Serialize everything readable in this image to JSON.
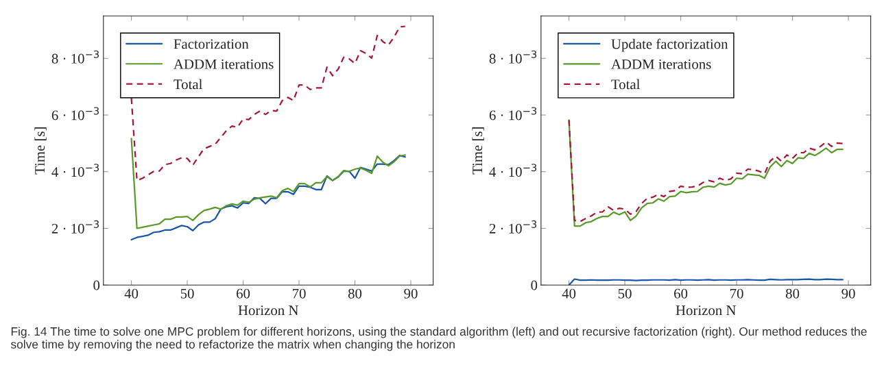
{
  "chart_data": [
    {
      "type": "line",
      "xlabel": "Horizon N",
      "ylabel": "Time [s]",
      "x": [
        40,
        41,
        42,
        43,
        44,
        45,
        46,
        47,
        48,
        49,
        50,
        51,
        52,
        53,
        54,
        55,
        56,
        57,
        58,
        59,
        60,
        61,
        62,
        63,
        64,
        65,
        66,
        67,
        68,
        69,
        70,
        71,
        72,
        73,
        74,
        75,
        76,
        77,
        78,
        79,
        80,
        81,
        82,
        83,
        84,
        85,
        86,
        87,
        88,
        89
      ],
      "series": [
        {
          "name": "Factorization",
          "color": "#1a56a8",
          "line_style": "solid",
          "values": [
            0.0016,
            0.00168,
            0.00172,
            0.00176,
            0.00186,
            0.00188,
            0.00194,
            0.00194,
            0.00202,
            0.0021,
            0.00206,
            0.00192,
            0.00212,
            0.00222,
            0.00222,
            0.00234,
            0.00268,
            0.00276,
            0.0028,
            0.00272,
            0.0029,
            0.00288,
            0.00308,
            0.00306,
            0.00287,
            0.00306,
            0.00306,
            0.00329,
            0.00329,
            0.0032,
            0.00349,
            0.00349,
            0.00345,
            0.00337,
            0.00337,
            0.00385,
            0.00369,
            0.00381,
            0.00402,
            0.00401,
            0.00377,
            0.00415,
            0.00409,
            0.00402,
            0.00427,
            0.00427,
            0.00425,
            0.00439,
            0.00457,
            0.00452
          ]
        },
        {
          "name": "ADDM iterations",
          "color": "#5a9a2a",
          "line_style": "solid",
          "values": [
            0.00517,
            0.002,
            0.00204,
            0.00208,
            0.00212,
            0.00216,
            0.00232,
            0.00232,
            0.0024,
            0.0024,
            0.00242,
            0.00228,
            0.00248,
            0.00263,
            0.00268,
            0.00274,
            0.00268,
            0.0028,
            0.00286,
            0.00282,
            0.00296,
            0.00292,
            0.00303,
            0.00308,
            0.00311,
            0.00314,
            0.00308,
            0.00333,
            0.00341,
            0.0033,
            0.00358,
            0.00358,
            0.00346,
            0.00361,
            0.00361,
            0.00383,
            0.00369,
            0.00383,
            0.00404,
            0.00401,
            0.00409,
            0.00413,
            0.00405,
            0.00394,
            0.00455,
            0.00433,
            0.00421,
            0.00435,
            0.00455,
            0.00459
          ]
        },
        {
          "name": "Total",
          "color": "#a8173a",
          "line_style": "dashed",
          "values": [
            0.0066,
            0.00369,
            0.00377,
            0.00389,
            0.00401,
            0.00402,
            0.00425,
            0.00429,
            0.00441,
            0.00449,
            0.00447,
            0.00423,
            0.00453,
            0.00481,
            0.00489,
            0.00497,
            0.00521,
            0.00545,
            0.00561,
            0.00557,
            0.00586,
            0.00584,
            0.00602,
            0.00614,
            0.00602,
            0.00616,
            0.00614,
            0.00651,
            0.00662,
            0.00651,
            0.00706,
            0.00706,
            0.0069,
            0.00696,
            0.00696,
            0.00769,
            0.00739,
            0.00762,
            0.00804,
            0.00798,
            0.00782,
            0.00827,
            0.00817,
            0.00801,
            0.00881,
            0.00859,
            0.00847,
            0.00875,
            0.00911,
            0.00913
          ]
        }
      ],
      "xlim": [
        35,
        94
      ],
      "xticks": [
        40,
        50,
        60,
        70,
        80,
        90
      ],
      "ylim": [
        0,
        0.0095
      ],
      "yticks": [
        {
          "value": 0,
          "label": "0"
        },
        {
          "value": 0.002,
          "label": "2 · 10$^{−3}$"
        },
        {
          "value": 0.004,
          "label": "4 · 10$^{−3}$"
        },
        {
          "value": 0.006,
          "label": "6 · 10$^{−3}$"
        },
        {
          "value": 0.008,
          "label": "8 · 10$^{−3}$"
        }
      ],
      "grid": false,
      "legend": "top left",
      "annotations": [
        "Fig. 14 The time to solve one MPC problem for different horizons, using the standard algorithm (left) and out recursive factorization (right). Our method reduces the solve time by removing the need to refactorize the matrix when changing the horizon"
      ]
    },
    {
      "type": "line",
      "xlabel": "Horizon N",
      "ylabel": "Time [s]",
      "x": [
        40,
        41,
        42,
        43,
        44,
        45,
        46,
        47,
        48,
        49,
        50,
        51,
        52,
        53,
        54,
        55,
        56,
        57,
        58,
        59,
        60,
        61,
        62,
        63,
        64,
        65,
        66,
        67,
        68,
        69,
        70,
        71,
        72,
        73,
        74,
        75,
        76,
        77,
        78,
        79,
        80,
        81,
        82,
        83,
        84,
        85,
        86,
        87,
        88,
        89
      ],
      "series": [
        {
          "name": "Update factorization",
          "color": "#1a56a8",
          "line_style": "solid",
          "values": [
            0.0,
            0.00021,
            0.00017,
            0.00017,
            0.00018,
            0.00017,
            0.00017,
            0.00017,
            0.00018,
            0.00018,
            0.00017,
            0.00017,
            0.00016,
            0.00017,
            0.00017,
            0.00018,
            0.00018,
            0.00018,
            0.00017,
            0.00019,
            0.00017,
            0.00018,
            0.00018,
            0.00017,
            0.00018,
            0.00019,
            0.00017,
            0.00018,
            0.00018,
            0.00017,
            0.00018,
            0.00018,
            0.00019,
            0.00018,
            0.00017,
            0.00017,
            0.0002,
            0.00019,
            0.00018,
            0.00019,
            0.00019,
            0.00019,
            0.0002,
            0.00021,
            0.00019,
            0.00019,
            0.00021,
            0.0002,
            0.00019,
            0.00019
          ]
        },
        {
          "name": "ADDM iterations",
          "color": "#5a9a2a",
          "line_style": "solid",
          "values": [
            0.00582,
            0.00208,
            0.00208,
            0.0022,
            0.00224,
            0.00235,
            0.00242,
            0.00242,
            0.00257,
            0.00248,
            0.00258,
            0.00228,
            0.00243,
            0.00272,
            0.00288,
            0.0029,
            0.00304,
            0.00296,
            0.00312,
            0.00314,
            0.0033,
            0.00326,
            0.00329,
            0.0033,
            0.00345,
            0.00349,
            0.00346,
            0.00359,
            0.00353,
            0.00357,
            0.00377,
            0.00375,
            0.00391,
            0.00389,
            0.00387,
            0.00377,
            0.00417,
            0.00437,
            0.00418,
            0.00439,
            0.00429,
            0.00449,
            0.00447,
            0.00465,
            0.00457,
            0.00469,
            0.00483,
            0.00467,
            0.00479,
            0.00479
          ]
        },
        {
          "name": "Total",
          "color": "#a8173a",
          "line_style": "dashed",
          "values": [
            0.00582,
            0.00228,
            0.00224,
            0.00235,
            0.00244,
            0.00257,
            0.00258,
            0.00276,
            0.00263,
            0.00271,
            0.00268,
            0.0025,
            0.00259,
            0.00288,
            0.00306,
            0.0031,
            0.0032,
            0.00312,
            0.0033,
            0.00333,
            0.00349,
            0.00345,
            0.00346,
            0.00349,
            0.00362,
            0.00369,
            0.00364,
            0.00377,
            0.00369,
            0.00375,
            0.00395,
            0.00393,
            0.00409,
            0.00407,
            0.00402,
            0.00393,
            0.00437,
            0.00455,
            0.00437,
            0.00459,
            0.00447,
            0.00467,
            0.00467,
            0.00483,
            0.00477,
            0.00489,
            0.00505,
            0.00489,
            0.00501,
            0.00499
          ]
        }
      ],
      "xlim": [
        35,
        94
      ],
      "xticks": [
        40,
        50,
        60,
        70,
        80,
        90
      ],
      "ylim": [
        0,
        0.0095
      ],
      "yticks": [
        {
          "value": 0,
          "label": "0"
        },
        {
          "value": 0.002,
          "label": "2 · 10$^{−3}$"
        },
        {
          "value": 0.004,
          "label": "4 · 10$^{−3}$"
        },
        {
          "value": 0.006,
          "label": "6 · 10$^{−3}$"
        },
        {
          "value": 0.008,
          "label": "8 · 10$^{−3}$"
        }
      ],
      "grid": false,
      "legend": "top left"
    }
  ]
}
